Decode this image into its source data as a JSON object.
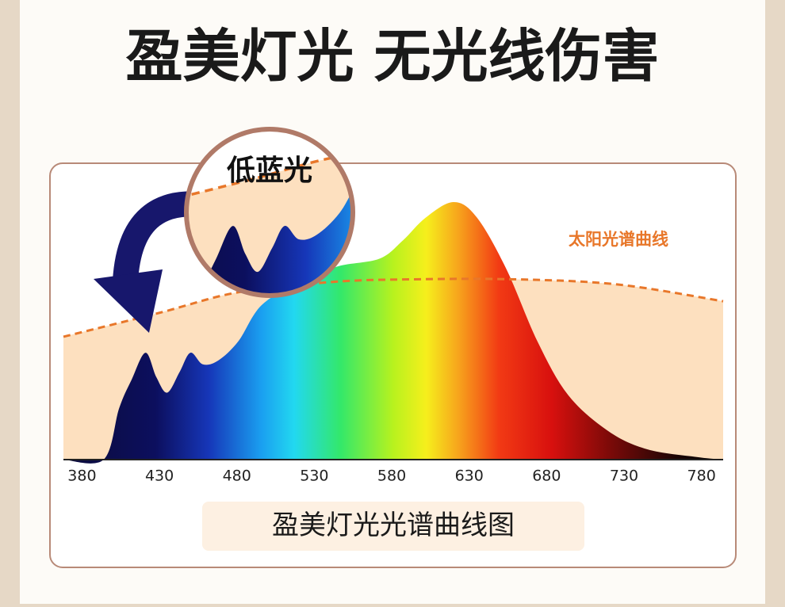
{
  "title": "盈美灯光 无光线伤害",
  "zoom_label": "低蓝光",
  "caption": "盈美灯光光谱曲线图",
  "chart_data": {
    "type": "line",
    "xlim": [
      368,
      794
    ],
    "ylim": [
      0,
      100
    ],
    "xticks": [
      380,
      430,
      480,
      530,
      580,
      630,
      680,
      730,
      780
    ],
    "series": [
      {
        "x": [
          368,
          394,
          404,
          412,
          421,
          428,
          435,
          443,
          450,
          458,
          468,
          481,
          496,
          521,
          545,
          572,
          587,
          602,
          620,
          635,
          654,
          674,
          694,
          720,
          745,
          777,
          794
        ],
        "values": [
          0,
          0,
          20,
          31,
          41.5,
          32,
          26,
          34,
          41.5,
          37,
          38.5,
          46,
          60,
          69,
          75,
          78,
          85,
          94,
          100,
          94,
          74,
          46,
          25,
          11,
          4,
          1,
          0
        ]
      },
      {
        "name": "太阳光谱曲线",
        "color": "#e8772a",
        "x": [
          368,
          430,
          481,
          542,
          593,
          660,
          726,
          794
        ],
        "values": [
          47.7,
          57,
          65,
          69,
          70,
          70,
          68,
          61.5
        ]
      }
    ]
  }
}
